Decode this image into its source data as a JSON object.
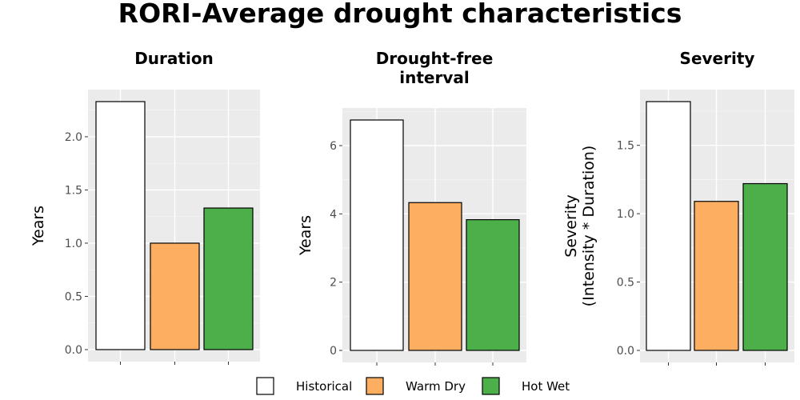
{
  "title": "RORI-Average drought characteristics",
  "legend": {
    "items": [
      {
        "label": "Historical",
        "color": "#ffffff"
      },
      {
        "label": "Warm Dry",
        "color": "#fdae61"
      },
      {
        "label": "Hot Wet",
        "color": "#4daf4a"
      }
    ]
  },
  "chart_data": [
    {
      "type": "bar",
      "title_lines": [
        "Duration"
      ],
      "ylabel_lines": [
        "Years"
      ],
      "categories": [
        "Historical",
        "Warm Dry",
        "Hot Wet"
      ],
      "values": [
        2.33,
        1.0,
        1.33
      ],
      "ylim": [
        0,
        2.33
      ],
      "yticks": [
        0,
        0.5,
        1.0,
        1.5,
        2.0
      ],
      "ytick_labels": [
        "0.0",
        "0.5",
        "1.0",
        "1.5",
        "2.0"
      ],
      "colors": [
        "#ffffff",
        "#fdae61",
        "#4daf4a"
      ]
    },
    {
      "type": "bar",
      "title_lines": [
        "Drought-free",
        "interval"
      ],
      "ylabel_lines": [
        "Years"
      ],
      "categories": [
        "Historical",
        "Warm Dry",
        "Hot Wet"
      ],
      "values": [
        6.75,
        4.33,
        3.83
      ],
      "ylim": [
        0,
        6.75
      ],
      "yticks": [
        0,
        2,
        4,
        6
      ],
      "ytick_labels": [
        "0",
        "2",
        "4",
        "6"
      ],
      "colors": [
        "#ffffff",
        "#fdae61",
        "#4daf4a"
      ]
    },
    {
      "type": "bar",
      "title_lines": [
        "Severity"
      ],
      "ylabel_lines": [
        "Severity",
        "(Intensity * Duration)"
      ],
      "categories": [
        "Historical",
        "Warm Dry",
        "Hot Wet"
      ],
      "values": [
        1.82,
        1.09,
        1.22
      ],
      "ylim": [
        0,
        1.82
      ],
      "yticks": [
        0,
        0.5,
        1.0,
        1.5
      ],
      "ytick_labels": [
        "0.0",
        "0.5",
        "1.0",
        "1.5"
      ],
      "colors": [
        "#ffffff",
        "#fdae61",
        "#4daf4a"
      ]
    }
  ]
}
